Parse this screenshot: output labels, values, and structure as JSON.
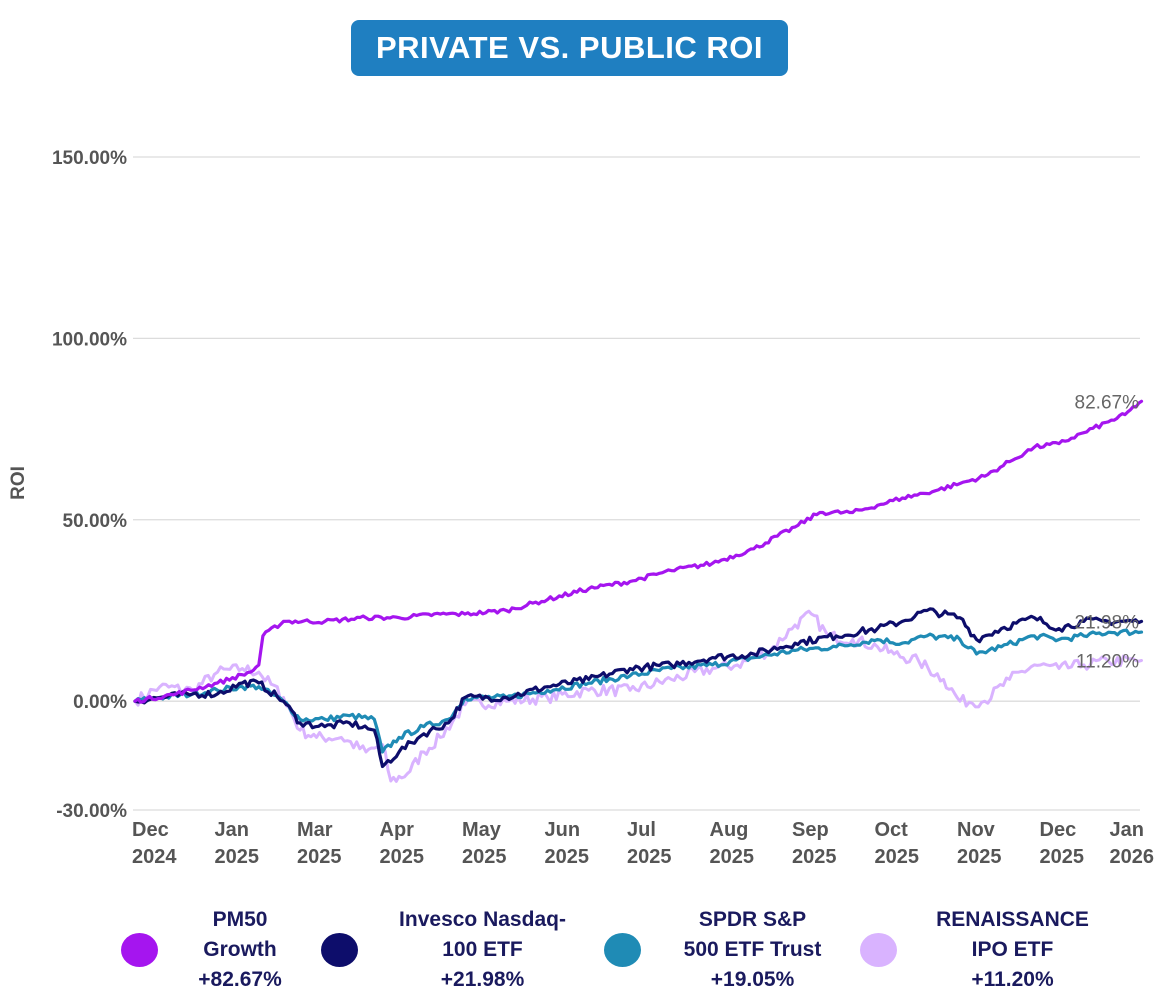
{
  "chart_data": {
    "type": "line",
    "title": "PRIVATE VS. PUBLIC  ROI",
    "ylabel": "ROI",
    "xlabel": "",
    "ylim": [
      -30,
      150
    ],
    "yticks": [
      {
        "value": 150,
        "label": "150.00%"
      },
      {
        "value": 100,
        "label": "100.00%"
      },
      {
        "value": 50,
        "label": "50.00%"
      },
      {
        "value": 0,
        "label": "0.00%"
      },
      {
        "value": -30,
        "label": "-30.00%"
      }
    ],
    "xticks": [
      {
        "t": 0,
        "month": "Dec",
        "year": "2024"
      },
      {
        "t": 1,
        "month": "Jan",
        "year": "2025"
      },
      {
        "t": 2,
        "month": "Mar",
        "year": "2025"
      },
      {
        "t": 3,
        "month": "Apr",
        "year": "2025"
      },
      {
        "t": 4,
        "month": "May",
        "year": "2025"
      },
      {
        "t": 5,
        "month": "Jun",
        "year": "2025"
      },
      {
        "t": 6,
        "month": "Jul",
        "year": "2025"
      },
      {
        "t": 7,
        "month": "Aug",
        "year": "2025"
      },
      {
        "t": 8,
        "month": "Sep",
        "year": "2025"
      },
      {
        "t": 9,
        "month": "Oct",
        "year": "2025"
      },
      {
        "t": 10,
        "month": "Nov",
        "year": "2025"
      },
      {
        "t": 11,
        "month": "Dec",
        "year": "2025"
      },
      {
        "t": 12,
        "month": "Jan",
        "year": "2026"
      }
    ],
    "series": [
      {
        "name": "RENAISSANCE IPO ETF",
        "legend_lines": [
          "RENAISSANCE",
          "IPO ETF",
          "+11.20%"
        ],
        "color": "#d9b3ff",
        "end_label": "11.20%",
        "points": [
          [
            0,
            0
          ],
          [
            0.3,
            4
          ],
          [
            0.7,
            3
          ],
          [
            1,
            8
          ],
          [
            1.3,
            9
          ],
          [
            1.5,
            8
          ],
          [
            1.8,
            1
          ],
          [
            2,
            -8
          ],
          [
            2.2,
            -10
          ],
          [
            2.5,
            -10
          ],
          [
            2.8,
            -14
          ],
          [
            3,
            -12
          ],
          [
            3.1,
            -22
          ],
          [
            3.3,
            -20
          ],
          [
            3.5,
            -14
          ],
          [
            3.7,
            -10
          ],
          [
            4,
            -1
          ],
          [
            4.5,
            0
          ],
          [
            5,
            1
          ],
          [
            5.5,
            3
          ],
          [
            6,
            3
          ],
          [
            6.5,
            6
          ],
          [
            7,
            9
          ],
          [
            7.3,
            10
          ],
          [
            7.7,
            14
          ],
          [
            8,
            21
          ],
          [
            8.2,
            24
          ],
          [
            8.4,
            18
          ],
          [
            8.7,
            17
          ],
          [
            9,
            15
          ],
          [
            9.2,
            13
          ],
          [
            9.5,
            11
          ],
          [
            9.8,
            6
          ],
          [
            10,
            0
          ],
          [
            10.3,
            0
          ],
          [
            10.6,
            6
          ],
          [
            10.9,
            10
          ],
          [
            11.2,
            9
          ],
          [
            11.5,
            10
          ],
          [
            11.8,
            11
          ],
          [
            12.2,
            11.2
          ]
        ]
      },
      {
        "name": "SPDR S&P 500 ETF Trust",
        "legend_lines": [
          "SPDR S&P",
          "500 ETF Trust",
          "+19.05%"
        ],
        "color": "#1f8bb5",
        "end_label": "",
        "points": [
          [
            0,
            0
          ],
          [
            0.3,
            1
          ],
          [
            0.7,
            2
          ],
          [
            1,
            3
          ],
          [
            1.3,
            4
          ],
          [
            1.5,
            4
          ],
          [
            1.8,
            0
          ],
          [
            2,
            -5
          ],
          [
            2.3,
            -5
          ],
          [
            2.6,
            -4
          ],
          [
            2.9,
            -5
          ],
          [
            3,
            -14
          ],
          [
            3.2,
            -10
          ],
          [
            3.5,
            -7
          ],
          [
            3.8,
            -5
          ],
          [
            4,
            1
          ],
          [
            4.5,
            1
          ],
          [
            5,
            3
          ],
          [
            5.5,
            5
          ],
          [
            6,
            7
          ],
          [
            6.5,
            9
          ],
          [
            7,
            10
          ],
          [
            7.5,
            12
          ],
          [
            8,
            14
          ],
          [
            8.5,
            15
          ],
          [
            9,
            17
          ],
          [
            9.3,
            16
          ],
          [
            9.6,
            18
          ],
          [
            10,
            17
          ],
          [
            10.2,
            13
          ],
          [
            10.5,
            15
          ],
          [
            10.9,
            18
          ],
          [
            11.2,
            17
          ],
          [
            11.5,
            18
          ],
          [
            11.8,
            19
          ],
          [
            12.2,
            19.05
          ]
        ]
      },
      {
        "name": "Invesco Nasdaq-100 ETF",
        "legend_lines": [
          "Invesco Nasdaq-",
          "100 ETF",
          "+21.98%"
        ],
        "color": "#0d0d6b",
        "end_label": "21.98%",
        "points": [
          [
            0,
            0
          ],
          [
            0.3,
            1
          ],
          [
            0.7,
            2
          ],
          [
            1,
            2
          ],
          [
            1.3,
            5
          ],
          [
            1.5,
            5
          ],
          [
            1.8,
            0
          ],
          [
            2,
            -6
          ],
          [
            2.3,
            -7
          ],
          [
            2.6,
            -6
          ],
          [
            2.9,
            -8
          ],
          [
            3,
            -18
          ],
          [
            3.2,
            -14
          ],
          [
            3.5,
            -9
          ],
          [
            3.8,
            -6
          ],
          [
            4,
            1
          ],
          [
            4.5,
            1
          ],
          [
            5,
            4
          ],
          [
            5.5,
            6
          ],
          [
            6,
            9
          ],
          [
            6.5,
            10
          ],
          [
            7,
            12
          ],
          [
            7.5,
            13
          ],
          [
            8,
            16
          ],
          [
            8.5,
            18
          ],
          [
            9,
            20
          ],
          [
            9.3,
            22
          ],
          [
            9.6,
            25
          ],
          [
            10,
            23
          ],
          [
            10.2,
            17
          ],
          [
            10.5,
            20
          ],
          [
            10.9,
            23
          ],
          [
            11.2,
            20
          ],
          [
            11.5,
            22
          ],
          [
            11.8,
            22
          ],
          [
            12.2,
            21.98
          ]
        ]
      },
      {
        "name": "PM50 Growth",
        "legend_lines": [
          "PM50",
          "Growth",
          "+82.67%"
        ],
        "color": "#a515ef",
        "end_label": "82.67%",
        "points": [
          [
            0,
            0
          ],
          [
            0.5,
            2
          ],
          [
            1,
            5
          ],
          [
            1.4,
            8
          ],
          [
            1.5,
            10
          ],
          [
            1.55,
            18
          ],
          [
            1.8,
            22
          ],
          [
            2.3,
            22
          ],
          [
            2.8,
            23
          ],
          [
            3.2,
            23
          ],
          [
            3.7,
            24
          ],
          [
            4,
            24
          ],
          [
            4.5,
            25
          ],
          [
            5,
            28
          ],
          [
            5.5,
            31
          ],
          [
            6,
            33
          ],
          [
            6.5,
            36
          ],
          [
            7,
            38
          ],
          [
            7.5,
            42
          ],
          [
            8,
            48
          ],
          [
            8.3,
            52
          ],
          [
            8.7,
            52
          ],
          [
            9,
            54
          ],
          [
            9.3,
            56
          ],
          [
            9.7,
            58
          ],
          [
            10,
            60
          ],
          [
            10.3,
            62
          ],
          [
            10.6,
            66
          ],
          [
            10.9,
            70
          ],
          [
            11.2,
            71
          ],
          [
            11.5,
            74
          ],
          [
            11.8,
            77
          ],
          [
            12,
            79
          ],
          [
            12.2,
            82.67
          ]
        ]
      }
    ]
  }
}
